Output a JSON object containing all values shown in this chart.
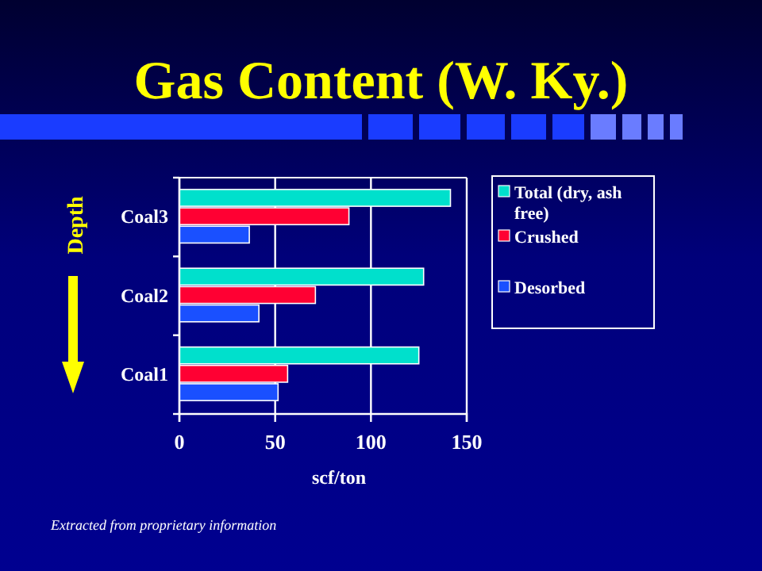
{
  "chart_data": {
    "type": "bar",
    "orientation": "horizontal",
    "title": "Gas Content (W. Ky.)",
    "xlabel": "scf/ton",
    "ylabel": "Depth",
    "categories": [
      "Coal3",
      "Coal2",
      "Coal1"
    ],
    "series": [
      {
        "name": "Total (dry, ash free)",
        "color": "#00e0cc",
        "values": [
          141.5,
          127.5,
          125
        ]
      },
      {
        "name": "Crushed",
        "color": "#ff0033",
        "values": [
          88.5,
          71,
          56.5
        ]
      },
      {
        "name": "Desorbed",
        "color": "#1a50ff",
        "values": [
          36.5,
          41.5,
          51.5
        ]
      }
    ],
    "xlim": [
      0,
      150
    ],
    "xticks": [
      0,
      50,
      100,
      150
    ],
    "grid": "x",
    "legend": "right",
    "annotations": [
      "Extracted from proprietary information"
    ]
  }
}
